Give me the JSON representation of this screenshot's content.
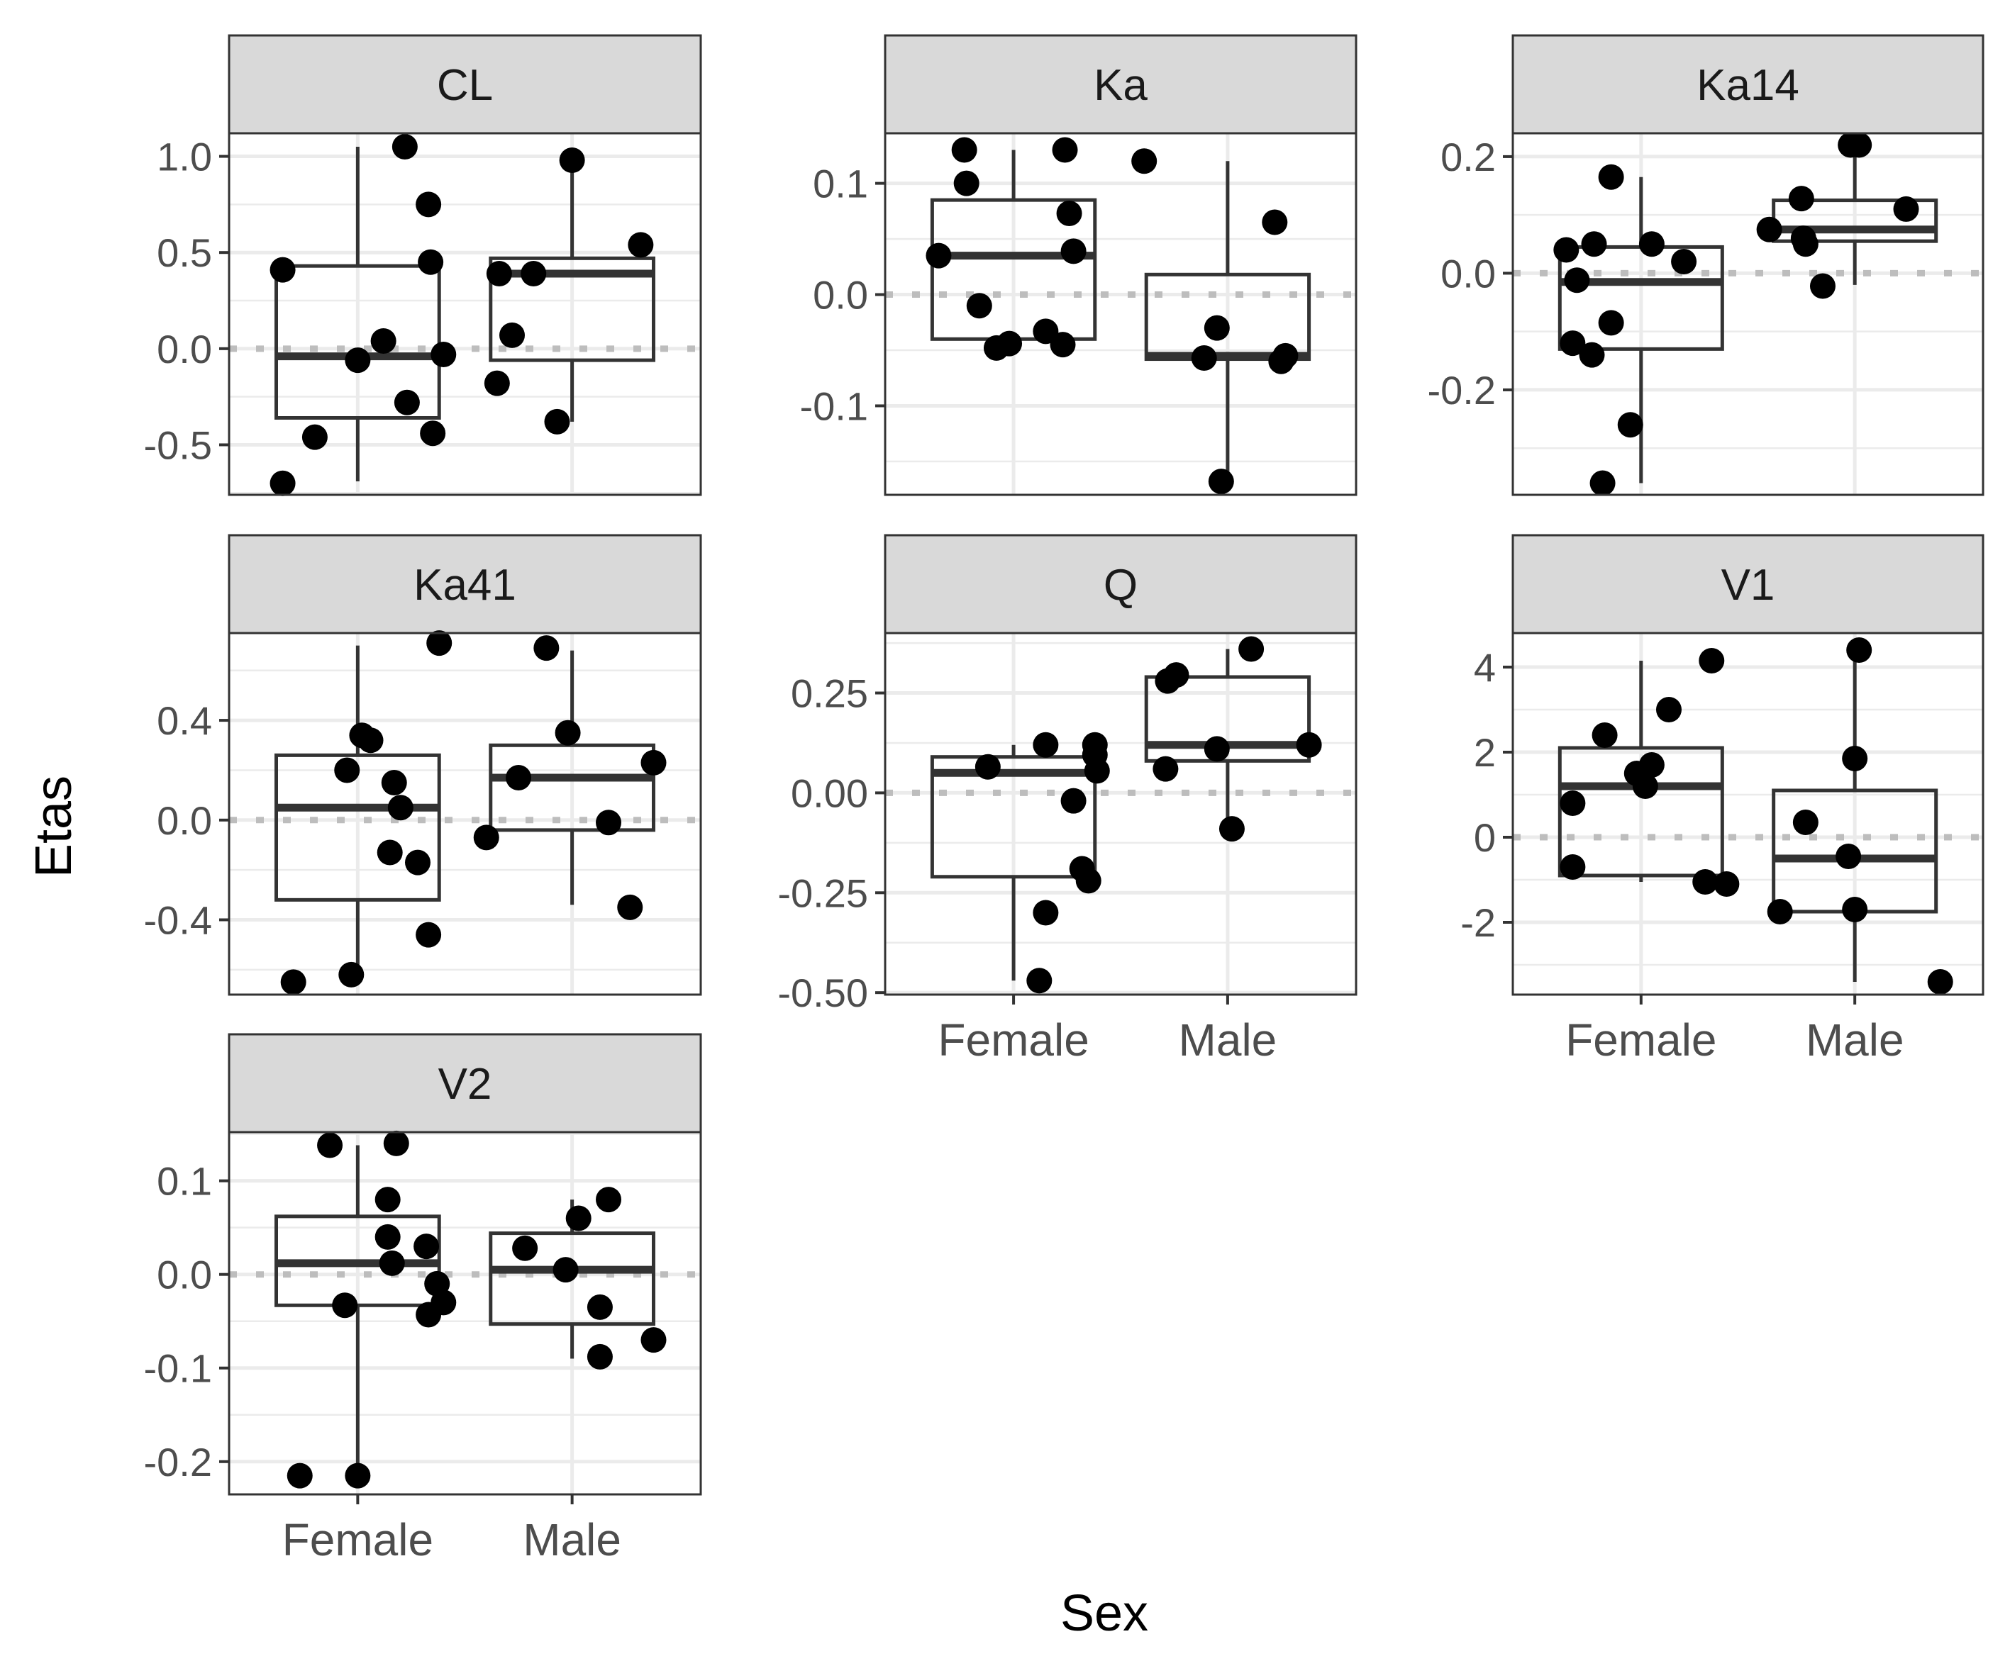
{
  "figure": {
    "xlabel": "Sex",
    "ylabel": "Etas"
  },
  "colors": {
    "strip_fill": "#d9d9d9",
    "frame": "#333333",
    "grid": "#ebebeb",
    "zero_line": "#bdbdbd",
    "points": "#000000",
    "tick_text": "#4d4d4d"
  },
  "chart_data": {
    "type": "box",
    "xlabel": "Sex",
    "ylabel": "Etas",
    "categories": [
      "Female",
      "Male"
    ],
    "grid": true,
    "reference_line": 0,
    "panels": [
      {
        "name": "CL",
        "ylim": [
          -0.76,
          1.12
        ],
        "yticks": [
          -0.5,
          0.0,
          0.5,
          1.0
        ],
        "ytick_labels": [
          "-0.5",
          "0.0",
          "0.5",
          "1.0"
        ],
        "box": [
          {
            "category": "Female",
            "whisker_low": -0.69,
            "q1": -0.36,
            "median": -0.04,
            "q3": 0.43,
            "whisker_high": 1.05
          },
          {
            "category": "Male",
            "whisker_low": -0.38,
            "q1": -0.06,
            "median": 0.39,
            "q3": 0.47,
            "whisker_high": 0.98
          }
        ],
        "points": [
          {
            "x": -0.35,
            "y": 0.41
          },
          {
            "x": -0.35,
            "y": -0.7
          },
          {
            "x": -0.2,
            "y": -0.46
          },
          {
            "x": 0.0,
            "y": -0.06
          },
          {
            "x": 0.12,
            "y": 0.04
          },
          {
            "x": 0.22,
            "y": 1.05
          },
          {
            "x": 0.23,
            "y": -0.28
          },
          {
            "x": 0.33,
            "y": 0.75
          },
          {
            "x": 0.34,
            "y": 0.45
          },
          {
            "x": 0.35,
            "y": -0.44
          },
          {
            "x": 0.4,
            "y": -0.03
          },
          {
            "x": 0.65,
            "y": -0.18
          },
          {
            "x": 0.66,
            "y": 0.39
          },
          {
            "x": 0.72,
            "y": 0.07
          },
          {
            "x": 0.82,
            "y": 0.39
          },
          {
            "x": 0.93,
            "y": -0.38
          },
          {
            "x": 1.0,
            "y": 0.98
          },
          {
            "x": 1.32,
            "y": 0.54
          }
        ]
      },
      {
        "name": "Ka",
        "ylim": [
          -0.18,
          0.145
        ],
        "yticks": [
          -0.1,
          0.0,
          0.1
        ],
        "ytick_labels": [
          "-0.1",
          "0.0",
          "0.1"
        ],
        "box": [
          {
            "category": "Female",
            "whisker_low": -0.05,
            "q1": -0.04,
            "median": 0.035,
            "q3": 0.085,
            "whisker_high": 0.13
          },
          {
            "category": "Male",
            "whisker_low": -0.168,
            "q1": -0.058,
            "median": -0.055,
            "q3": 0.018,
            "whisker_high": 0.12
          }
        ],
        "points": [
          {
            "x": -0.35,
            "y": 0.035
          },
          {
            "x": -0.23,
            "y": 0.13
          },
          {
            "x": -0.22,
            "y": 0.1
          },
          {
            "x": -0.16,
            "y": -0.01
          },
          {
            "x": -0.08,
            "y": -0.048
          },
          {
            "x": -0.02,
            "y": -0.044
          },
          {
            "x": 0.15,
            "y": -0.033
          },
          {
            "x": 0.23,
            "y": -0.045
          },
          {
            "x": 0.24,
            "y": 0.13
          },
          {
            "x": 0.26,
            "y": 0.073
          },
          {
            "x": 0.28,
            "y": 0.039
          },
          {
            "x": 0.61,
            "y": 0.12
          },
          {
            "x": 0.89,
            "y": -0.057
          },
          {
            "x": 0.95,
            "y": -0.03
          },
          {
            "x": 0.97,
            "y": -0.168
          },
          {
            "x": 1.22,
            "y": 0.065
          },
          {
            "x": 1.25,
            "y": -0.06
          },
          {
            "x": 1.27,
            "y": -0.055
          }
        ]
      },
      {
        "name": "Ka14",
        "ylim": [
          -0.38,
          0.24
        ],
        "yticks": [
          -0.2,
          0.0,
          0.2
        ],
        "ytick_labels": [
          "-0.2",
          "0.0",
          "0.2"
        ],
        "box": [
          {
            "category": "Female",
            "whisker_low": -0.36,
            "q1": -0.13,
            "median": -0.015,
            "q3": 0.045,
            "whisker_high": 0.165
          },
          {
            "category": "Male",
            "whisker_low": -0.02,
            "q1": 0.055,
            "median": 0.075,
            "q3": 0.125,
            "whisker_high": 0.22
          }
        ],
        "points": [
          {
            "x": -0.35,
            "y": 0.04
          },
          {
            "x": -0.32,
            "y": -0.12
          },
          {
            "x": -0.3,
            "y": -0.012
          },
          {
            "x": -0.23,
            "y": -0.14
          },
          {
            "x": -0.22,
            "y": 0.05
          },
          {
            "x": -0.18,
            "y": -0.36
          },
          {
            "x": -0.14,
            "y": 0.165
          },
          {
            "x": -0.14,
            "y": -0.085
          },
          {
            "x": -0.05,
            "y": -0.26
          },
          {
            "x": 0.05,
            "y": 0.05
          },
          {
            "x": 0.2,
            "y": 0.02
          },
          {
            "x": 0.6,
            "y": 0.075
          },
          {
            "x": 0.75,
            "y": 0.128
          },
          {
            "x": 0.76,
            "y": 0.06
          },
          {
            "x": 0.77,
            "y": 0.05
          },
          {
            "x": 0.85,
            "y": -0.022
          },
          {
            "x": 0.98,
            "y": 0.22
          },
          {
            "x": 1.02,
            "y": 0.22
          },
          {
            "x": 1.24,
            "y": 0.11
          }
        ]
      },
      {
        "name": "Ka41",
        "ylim": [
          -0.7,
          0.75
        ],
        "yticks": [
          -0.4,
          0.0,
          0.4
        ],
        "ytick_labels": [
          "-0.4",
          "0.0",
          "0.4"
        ],
        "box": [
          {
            "category": "Female",
            "whisker_low": -0.63,
            "q1": -0.32,
            "median": 0.05,
            "q3": 0.26,
            "whisker_high": 0.7
          },
          {
            "category": "Male",
            "whisker_low": -0.34,
            "q1": -0.04,
            "median": 0.17,
            "q3": 0.3,
            "whisker_high": 0.68
          }
        ],
        "points": [
          {
            "x": -0.3,
            "y": -0.65
          },
          {
            "x": -0.05,
            "y": 0.2
          },
          {
            "x": -0.03,
            "y": -0.62
          },
          {
            "x": 0.02,
            "y": 0.34
          },
          {
            "x": 0.06,
            "y": 0.32
          },
          {
            "x": 0.15,
            "y": -0.13
          },
          {
            "x": 0.17,
            "y": 0.15
          },
          {
            "x": 0.2,
            "y": 0.05
          },
          {
            "x": 0.28,
            "y": -0.17
          },
          {
            "x": 0.33,
            "y": -0.46
          },
          {
            "x": 0.38,
            "y": 0.71
          },
          {
            "x": 0.6,
            "y": -0.07
          },
          {
            "x": 0.75,
            "y": 0.17
          },
          {
            "x": 0.88,
            "y": 0.69
          },
          {
            "x": 0.98,
            "y": 0.35
          },
          {
            "x": 1.17,
            "y": -0.01
          },
          {
            "x": 1.27,
            "y": -0.35
          },
          {
            "x": 1.38,
            "y": 0.23
          }
        ]
      },
      {
        "name": "Q",
        "ylim": [
          -0.505,
          0.4
        ],
        "yticks": [
          -0.5,
          -0.25,
          0.0,
          0.25
        ],
        "ytick_labels": [
          "-0.50",
          "-0.25",
          "0.00",
          "0.25"
        ],
        "box": [
          {
            "category": "Female",
            "whisker_low": -0.47,
            "q1": -0.21,
            "median": 0.05,
            "q3": 0.09,
            "whisker_high": 0.12
          },
          {
            "category": "Male",
            "whisker_low": -0.09,
            "q1": 0.08,
            "median": 0.12,
            "q3": 0.29,
            "whisker_high": 0.36
          }
        ],
        "points": [
          {
            "x": -0.12,
            "y": 0.065
          },
          {
            "x": 0.12,
            "y": -0.47
          },
          {
            "x": 0.15,
            "y": -0.3
          },
          {
            "x": 0.15,
            "y": 0.12
          },
          {
            "x": 0.28,
            "y": -0.02
          },
          {
            "x": 0.32,
            "y": -0.19
          },
          {
            "x": 0.35,
            "y": -0.22
          },
          {
            "x": 0.38,
            "y": 0.12
          },
          {
            "x": 0.38,
            "y": 0.095
          },
          {
            "x": 0.39,
            "y": 0.055
          },
          {
            "x": 0.71,
            "y": 0.06
          },
          {
            "x": 0.72,
            "y": 0.28
          },
          {
            "x": 0.76,
            "y": 0.295
          },
          {
            "x": 0.95,
            "y": 0.11
          },
          {
            "x": 1.02,
            "y": -0.09
          },
          {
            "x": 1.11,
            "y": 0.36
          },
          {
            "x": 1.38,
            "y": 0.12
          }
        ]
      },
      {
        "name": "V1",
        "ylim": [
          -3.7,
          4.8
        ],
        "yticks": [
          -2,
          0,
          2,
          4
        ],
        "ytick_labels": [
          "-2",
          "0",
          "2",
          "4"
        ],
        "box": [
          {
            "category": "Female",
            "whisker_low": -1.05,
            "q1": -0.9,
            "median": 1.2,
            "q3": 2.1,
            "whisker_high": 4.15
          },
          {
            "category": "Male",
            "whisker_low": -3.4,
            "q1": -1.75,
            "median": -0.5,
            "q3": 1.1,
            "whisker_high": 4.4
          }
        ],
        "points": [
          {
            "x": -0.32,
            "y": 0.8
          },
          {
            "x": -0.32,
            "y": -0.7
          },
          {
            "x": -0.17,
            "y": 2.4
          },
          {
            "x": -0.02,
            "y": 1.5
          },
          {
            "x": 0.02,
            "y": 1.2
          },
          {
            "x": 0.05,
            "y": 1.7
          },
          {
            "x": 0.13,
            "y": 3.0
          },
          {
            "x": 0.3,
            "y": -1.05
          },
          {
            "x": 0.33,
            "y": 4.15
          },
          {
            "x": 0.4,
            "y": -1.1
          },
          {
            "x": 0.65,
            "y": -1.75
          },
          {
            "x": 0.77,
            "y": 0.35
          },
          {
            "x": 0.97,
            "y": -0.45
          },
          {
            "x": 1.0,
            "y": -1.7
          },
          {
            "x": 1.0,
            "y": 1.85
          },
          {
            "x": 1.02,
            "y": 4.4
          },
          {
            "x": 1.4,
            "y": -3.4
          }
        ]
      },
      {
        "name": "V2",
        "ylim": [
          -0.235,
          0.152
        ],
        "yticks": [
          -0.2,
          -0.1,
          0.0,
          0.1
        ],
        "ytick_labels": [
          "-0.2",
          "-0.1",
          "0.0",
          "0.1"
        ],
        "box": [
          {
            "category": "Female",
            "whisker_low": -0.215,
            "q1": -0.033,
            "median": 0.012,
            "q3": 0.062,
            "whisker_high": 0.138
          },
          {
            "category": "Male",
            "whisker_low": -0.09,
            "q1": -0.053,
            "median": 0.005,
            "q3": 0.044,
            "whisker_high": 0.08
          }
        ],
        "points": [
          {
            "x": -0.27,
            "y": -0.215
          },
          {
            "x": -0.13,
            "y": 0.138
          },
          {
            "x": -0.06,
            "y": -0.033
          },
          {
            "x": 0.0,
            "y": -0.215
          },
          {
            "x": 0.14,
            "y": 0.08
          },
          {
            "x": 0.14,
            "y": 0.04
          },
          {
            "x": 0.16,
            "y": 0.012
          },
          {
            "x": 0.18,
            "y": 0.14
          },
          {
            "x": 0.32,
            "y": 0.03
          },
          {
            "x": 0.33,
            "y": -0.043
          },
          {
            "x": 0.37,
            "y": -0.01
          },
          {
            "x": 0.4,
            "y": -0.03
          },
          {
            "x": 0.78,
            "y": 0.028
          },
          {
            "x": 0.97,
            "y": 0.005
          },
          {
            "x": 1.03,
            "y": 0.06
          },
          {
            "x": 1.13,
            "y": -0.035
          },
          {
            "x": 1.13,
            "y": -0.088
          },
          {
            "x": 1.17,
            "y": 0.08
          },
          {
            "x": 1.38,
            "y": -0.07
          }
        ]
      }
    ]
  }
}
